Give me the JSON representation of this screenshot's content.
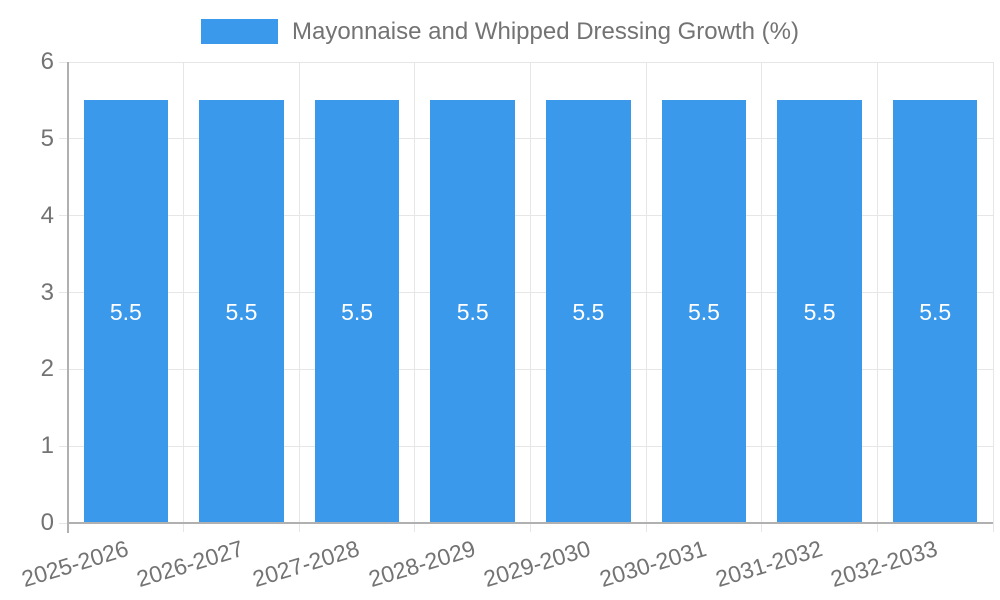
{
  "chart_data": {
    "type": "bar",
    "title": "Mayonnaise and Whipped Dressing Growth (%)",
    "legend": {
      "position": "top",
      "label": "Mayonnaise and Whipped Dressing Growth (%)"
    },
    "categories": [
      "2025-2026",
      "2026-2027",
      "2027-2028",
      "2028-2029",
      "2029-2030",
      "2030-2031",
      "2031-2032",
      "2032-2033"
    ],
    "values": [
      5.5,
      5.5,
      5.5,
      5.5,
      5.5,
      5.5,
      5.5,
      5.5
    ],
    "point_labels": [
      "5.5",
      "5.5",
      "5.5",
      "5.5",
      "5.5",
      "5.5",
      "5.5",
      "5.5"
    ],
    "xlabel": "",
    "ylabel": "",
    "ylim": [
      0,
      6
    ],
    "yticks": [
      "0",
      "1",
      "2",
      "3",
      "4",
      "5",
      "6"
    ],
    "grid": true,
    "x_tick_rotation_deg": -17,
    "colors": {
      "bar": "#3b99ec",
      "bar_label": "#ffffff",
      "axis_text": "#737373",
      "legend_text": "#737373",
      "gridline": "#e6e6e6",
      "axis_line": "#b0b0b0",
      "background": "#ffffff"
    }
  }
}
